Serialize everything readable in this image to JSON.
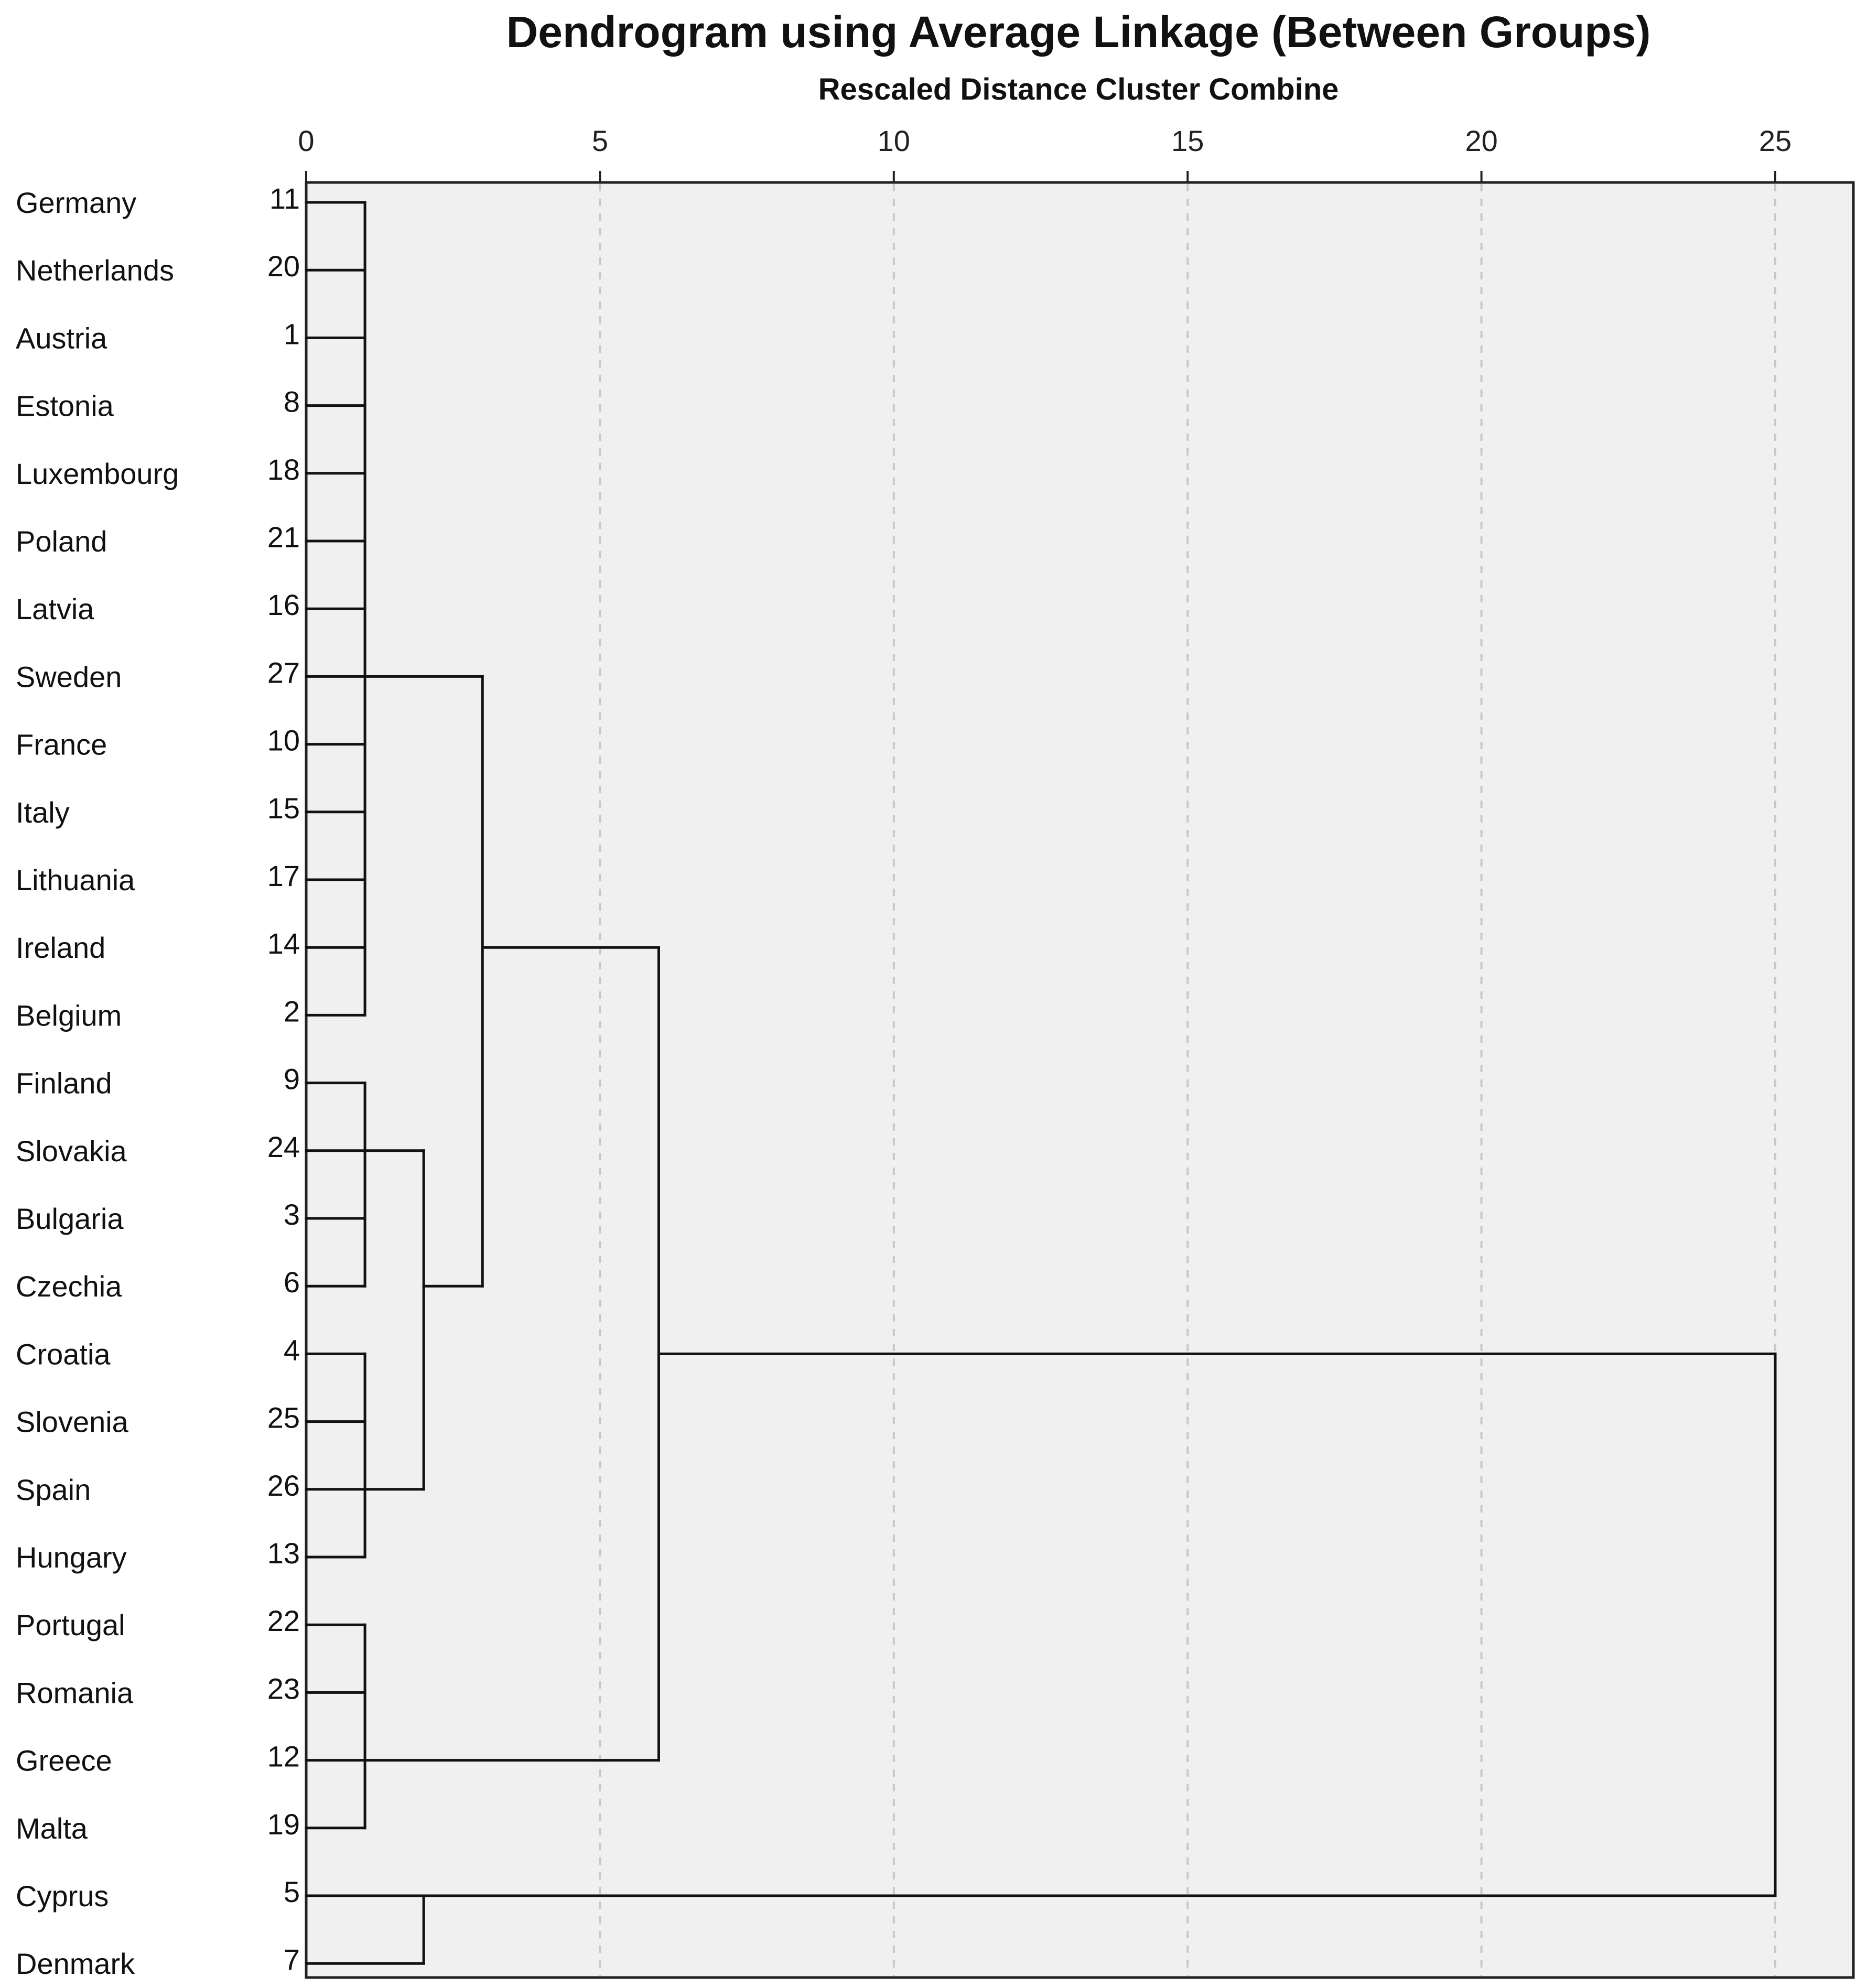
{
  "chart_data": {
    "type": "dendrogram",
    "title": "Dendrogram using Average Linkage (Between Groups)",
    "xlabel": "Rescaled Distance Cluster Combine",
    "xlim": [
      0,
      25
    ],
    "xticks": [
      0,
      5,
      10,
      15,
      20,
      25
    ],
    "xtick_labels": [
      "0",
      "5",
      "10",
      "15",
      "20",
      "25"
    ],
    "grid": "vertical dashed",
    "leaves": [
      {
        "label": "Germany",
        "id": "11"
      },
      {
        "label": "Netherlands",
        "id": "20"
      },
      {
        "label": "Austria",
        "id": "1"
      },
      {
        "label": "Estonia",
        "id": "8"
      },
      {
        "label": "Luxembourg",
        "id": "18"
      },
      {
        "label": "Poland",
        "id": "21"
      },
      {
        "label": "Latvia",
        "id": "16"
      },
      {
        "label": "Sweden",
        "id": "27"
      },
      {
        "label": "France",
        "id": "10"
      },
      {
        "label": "Italy",
        "id": "15"
      },
      {
        "label": "Lithuania",
        "id": "17"
      },
      {
        "label": "Ireland",
        "id": "14"
      },
      {
        "label": "Belgium",
        "id": "2"
      },
      {
        "label": "Finland",
        "id": "9"
      },
      {
        "label": "Slovakia",
        "id": "24"
      },
      {
        "label": "Bulgaria",
        "id": "3"
      },
      {
        "label": "Czechia",
        "id": "6"
      },
      {
        "label": "Croatia",
        "id": "4"
      },
      {
        "label": "Slovenia",
        "id": "25"
      },
      {
        "label": "Spain",
        "id": "26"
      },
      {
        "label": "Hungary",
        "id": "13"
      },
      {
        "label": "Portugal",
        "id": "22"
      },
      {
        "label": "Romania",
        "id": "23"
      },
      {
        "label": "Greece",
        "id": "12"
      },
      {
        "label": "Malta",
        "id": "19"
      },
      {
        "label": "Cyprus",
        "id": "5"
      },
      {
        "label": "Denmark",
        "id": "7"
      }
    ],
    "merges": [
      {
        "id": "A",
        "height": 1.0,
        "children": [
          "L0",
          "L1",
          "L2",
          "L3",
          "L4",
          "L5",
          "L6",
          "L7",
          "L8",
          "L9",
          "L10",
          "L11",
          "L12"
        ],
        "join_leaf": 7
      },
      {
        "id": "B",
        "height": 1.0,
        "children": [
          "L13",
          "L14",
          "L15",
          "L16"
        ],
        "join_leaf": 14
      },
      {
        "id": "C",
        "height": 1.0,
        "children": [
          "L17",
          "L18",
          "L19",
          "L20"
        ],
        "join_leaf": 19
      },
      {
        "id": "D",
        "height": 1.0,
        "children": [
          "L21",
          "L22",
          "L23",
          "L24"
        ],
        "join_leaf": 23
      },
      {
        "id": "E",
        "height": 2.0,
        "children": [
          "L25",
          "L26"
        ],
        "join_leaf": 25
      },
      {
        "id": "F",
        "height": 2.0,
        "children": [
          "B",
          "C"
        ],
        "join_leaf": 16
      },
      {
        "id": "G",
        "height": 3.0,
        "children": [
          "A",
          "F"
        ],
        "join_leaf": 11
      },
      {
        "id": "H",
        "height": 6.0,
        "children": [
          "G",
          "D"
        ],
        "join_leaf": 17
      },
      {
        "id": "I",
        "height": 25.0,
        "children": [
          "H",
          "E"
        ]
      }
    ]
  }
}
